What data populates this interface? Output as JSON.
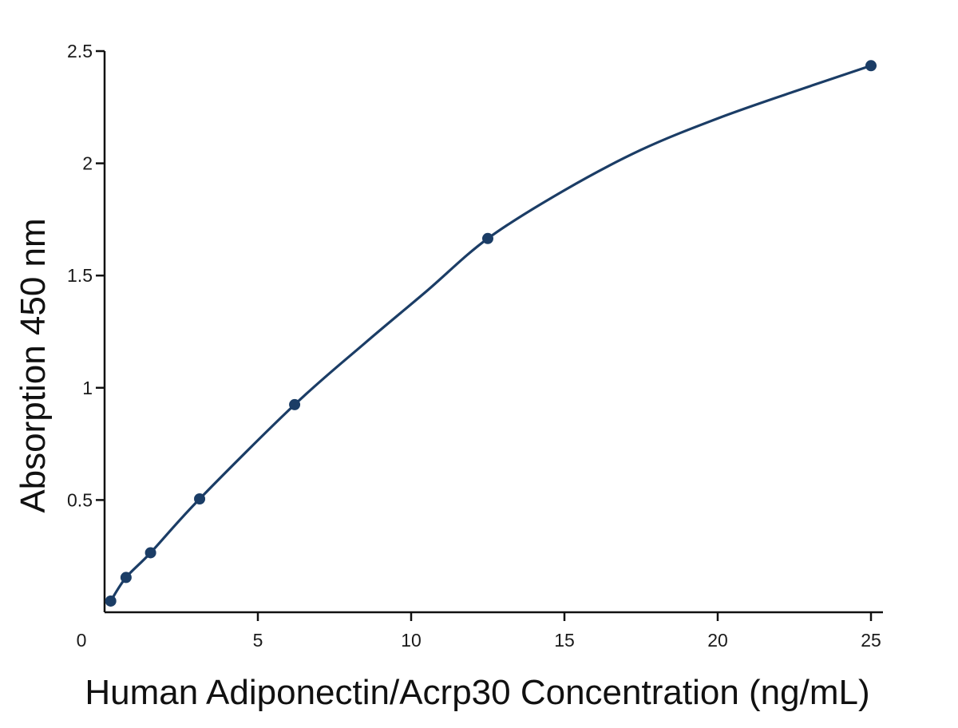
{
  "chart_data": {
    "type": "scatter",
    "title": "",
    "xlabel": "Human Adiponectin/Acrp30 Concentration (ng/mL)",
    "ylabel": "Absorption 450 nm",
    "xlim": [
      0,
      25
    ],
    "ylim": [
      0,
      2.5
    ],
    "x_ticks": [
      0,
      5,
      10,
      15,
      20,
      25
    ],
    "x_tick_labels": [
      "0",
      "5",
      "10",
      "15",
      "20",
      "25"
    ],
    "y_ticks": [
      0.5,
      1,
      1.5,
      2,
      2.5
    ],
    "y_tick_labels": [
      "0.5",
      "1",
      "1.5",
      "2",
      "2.5"
    ],
    "grid": false,
    "legend": "none",
    "color": "#1b3d66",
    "series": [
      {
        "points": [
          {
            "x": 0.2,
            "y": 0.05
          },
          {
            "x": 0.7,
            "y": 0.155
          },
          {
            "x": 1.5,
            "y": 0.265
          },
          {
            "x": 3.1,
            "y": 0.505
          },
          {
            "x": 6.2,
            "y": 0.925
          },
          {
            "x": 12.5,
            "y": 1.665
          },
          {
            "x": 25,
            "y": 2.435
          }
        ],
        "fit_curve": [
          [
            0.2,
            0.05
          ],
          [
            0.7,
            0.155
          ],
          [
            1.5,
            0.265
          ],
          [
            3.1,
            0.505
          ],
          [
            6.2,
            0.925
          ],
          [
            8.5,
            1.2
          ],
          [
            10.5,
            1.43
          ],
          [
            12.5,
            1.665
          ],
          [
            15,
            1.88
          ],
          [
            17.5,
            2.06
          ],
          [
            20,
            2.2
          ],
          [
            22.5,
            2.32
          ],
          [
            25,
            2.435
          ]
        ]
      }
    ]
  }
}
